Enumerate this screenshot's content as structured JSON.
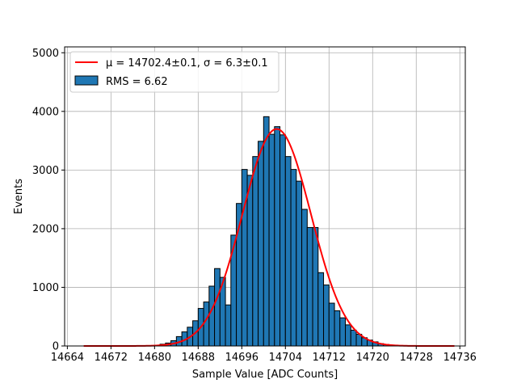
{
  "chart_data": {
    "type": "bar",
    "xlabel": "Sample Value [ADC Counts]",
    "ylabel": "Events",
    "xlim": [
      14663.5,
      14737
    ],
    "ylim": [
      0,
      5100
    ],
    "xticks": [
      14664,
      14672,
      14680,
      14688,
      14696,
      14704,
      14712,
      14720,
      14728,
      14736
    ],
    "yticks": [
      0,
      1000,
      2000,
      3000,
      4000,
      5000
    ],
    "grid": true,
    "legend_position": "top-left",
    "bar_color": "#1f77b4",
    "fit_color": "#ff0000",
    "bin_width": 1,
    "bins": [
      14681,
      14682,
      14683,
      14684,
      14685,
      14686,
      14687,
      14688,
      14689,
      14690,
      14691,
      14692,
      14693,
      14694,
      14695,
      14696,
      14697,
      14698,
      14699,
      14700,
      14701,
      14702,
      14703,
      14704,
      14705,
      14706,
      14707,
      14708,
      14709,
      14710,
      14711,
      14712,
      14713,
      14714,
      14715,
      14716,
      14717,
      14718,
      14719,
      14720,
      14721,
      14722,
      14723
    ],
    "counts": [
      30,
      50,
      90,
      160,
      240,
      320,
      430,
      640,
      750,
      1020,
      1320,
      1170,
      700,
      1890,
      2430,
      3010,
      2910,
      3230,
      3490,
      3910,
      3610,
      3740,
      3600,
      3230,
      3010,
      2810,
      2330,
      2020,
      2020,
      1250,
      1040,
      730,
      600,
      480,
      360,
      270,
      200,
      140,
      100,
      70,
      40,
      25,
      10
    ],
    "fit": {
      "mu": 14702.4,
      "sigma": 6.3,
      "amplitude": 3700,
      "x_range": [
        14667,
        14735
      ]
    },
    "legend": [
      {
        "type": "line",
        "label": "μ = 14702.4±0.1, σ = 6.3±0.1"
      },
      {
        "type": "patch",
        "label": "RMS = 6.62"
      }
    ]
  }
}
